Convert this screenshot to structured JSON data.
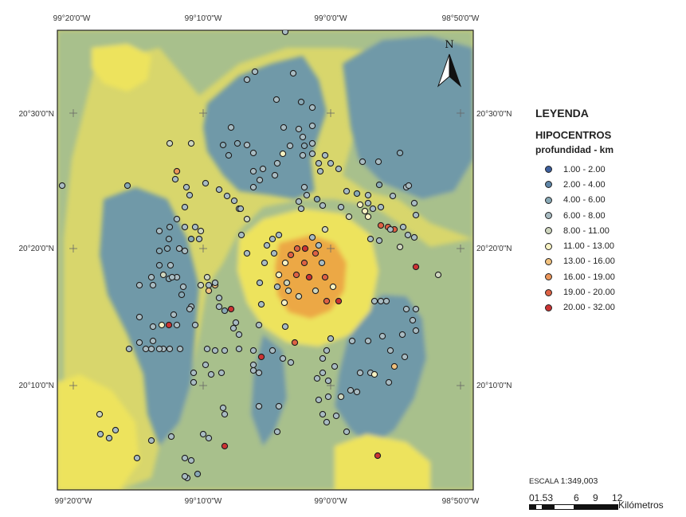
{
  "map": {
    "north_label": "N",
    "top_lon_labels": [
      "99°20'0\"W",
      "99°10'0\"W",
      "99°0'0\"W",
      "98°50'0\"W"
    ],
    "bottom_lon_labels": [
      "99°20'0\"W",
      "99°10'0\"W",
      "99°0'0\"W",
      "98°50'0\"W"
    ],
    "left_lat_labels": [
      "20°30'0\"N",
      "20°20'0\"N",
      "20°10'0\"N"
    ],
    "right_lat_labels": [
      "20°30'0\"N",
      "20°20'0\"N",
      "20°10'0\"N"
    ]
  },
  "legend": {
    "title": "LEYENDA",
    "subtitle": "HIPOCENTROS",
    "subtitle2": "profundidad - km",
    "classes": [
      {
        "label": "1.00 - 2.00",
        "color": "#3d5f9e"
      },
      {
        "label": "2.00 - 4.00",
        "color": "#5f86a8"
      },
      {
        "label": "4.00 - 6.00",
        "color": "#88a9b6"
      },
      {
        "label": "6.00 - 8.00",
        "color": "#a9bcc3"
      },
      {
        "label": "8.00 - 11.00",
        "color": "#cfd6bf"
      },
      {
        "label": "11.00 - 13.00",
        "color": "#f7f2c3"
      },
      {
        "label": "13.00 - 16.00",
        "color": "#f2c27e"
      },
      {
        "label": "16.00 - 19.00",
        "color": "#eb955a"
      },
      {
        "label": "19.00 - 20.00",
        "color": "#de6244"
      },
      {
        "label": "20.00 - 32.00",
        "color": "#cc3333"
      }
    ]
  },
  "scale": {
    "title_prefix": "ESCALA",
    "title_value": "1:349,003",
    "ticks": [
      "01.53",
      "6",
      "9",
      "12"
    ],
    "unit": "Kilómetros"
  },
  "colors": {
    "surface_shallow": "#6f99a8",
    "surface_mid": "#a8c08c",
    "surface_light": "#d8d66c",
    "surface_yellow": "#ede35d",
    "surface_deep": "#eca845"
  },
  "epicenters": [
    [
      358,
      40,
      3
    ],
    [
      320,
      90,
      3
    ],
    [
      310,
      100,
      3
    ],
    [
      368,
      92,
      3
    ],
    [
      347,
      125,
      3
    ],
    [
      378,
      128,
      2
    ],
    [
      392,
      135,
      3
    ],
    [
      356,
      160,
      3
    ],
    [
      375,
      162,
      3
    ],
    [
      392,
      158,
      3
    ],
    [
      380,
      172,
      3
    ],
    [
      392,
      180,
      3
    ],
    [
      364,
      183,
      3
    ],
    [
      382,
      183,
      2
    ],
    [
      392,
      193,
      3
    ],
    [
      408,
      195,
      3
    ],
    [
      415,
      205,
      3
    ],
    [
      425,
      212,
      3
    ],
    [
      400,
      205,
      3
    ],
    [
      402,
      215,
      3
    ],
    [
      380,
      195,
      3
    ],
    [
      355,
      193,
      5
    ],
    [
      348,
      205,
      3
    ],
    [
      345,
      220,
      3
    ],
    [
      330,
      212,
      3
    ],
    [
      318,
      215,
      3
    ],
    [
      326,
      226,
      3
    ],
    [
      318,
      235,
      3
    ],
    [
      382,
      235,
      3
    ],
    [
      385,
      245,
      3
    ],
    [
      375,
      253,
      3
    ],
    [
      378,
      262,
      3
    ],
    [
      398,
      250,
      2
    ],
    [
      405,
      258,
      3
    ],
    [
      435,
      240,
      3
    ],
    [
      448,
      243,
      2
    ],
    [
      462,
      245,
      3
    ],
    [
      468,
      262,
      3
    ],
    [
      452,
      257,
      5
    ],
    [
      458,
      265,
      5
    ],
    [
      462,
      272,
      5
    ],
    [
      462,
      255,
      3
    ],
    [
      478,
      260,
      3
    ],
    [
      493,
      246,
      3
    ],
    [
      510,
      235,
      3
    ],
    [
      520,
      255,
      3
    ],
    [
      522,
      270,
      3
    ],
    [
      478,
      283,
      8
    ],
    [
      487,
      285,
      8
    ],
    [
      495,
      288,
      8
    ],
    [
      506,
      285,
      3
    ],
    [
      512,
      295,
      3
    ],
    [
      520,
      298,
      3
    ],
    [
      522,
      335,
      9
    ],
    [
      550,
      345,
      4
    ],
    [
      502,
      310,
      4
    ],
    [
      490,
      288,
      3
    ],
    [
      465,
      300,
      3
    ],
    [
      476,
      302,
      3
    ],
    [
      438,
      272,
      4
    ],
    [
      428,
      260,
      3
    ],
    [
      408,
      288,
      4
    ],
    [
      392,
      298,
      3
    ],
    [
      400,
      308,
      3
    ],
    [
      383,
      312,
      9
    ],
    [
      373,
      312,
      8
    ],
    [
      365,
      320,
      8
    ],
    [
      358,
      330,
      5
    ],
    [
      350,
      345,
      5
    ],
    [
      360,
      355,
      4
    ],
    [
      372,
      345,
      8
    ],
    [
      388,
      348,
      9
    ],
    [
      382,
      330,
      8
    ],
    [
      396,
      318,
      8
    ],
    [
      404,
      330,
      3
    ],
    [
      408,
      348,
      8
    ],
    [
      418,
      360,
      5
    ],
    [
      425,
      378,
      9
    ],
    [
      410,
      378,
      8
    ],
    [
      396,
      365,
      4
    ],
    [
      375,
      372,
      4
    ],
    [
      357,
      380,
      5
    ],
    [
      362,
      365,
      4
    ],
    [
      348,
      360,
      3
    ],
    [
      342,
      300,
      3
    ],
    [
      350,
      295,
      3
    ],
    [
      335,
      308,
      3
    ],
    [
      344,
      318,
      3
    ],
    [
      332,
      330,
      3
    ],
    [
      326,
      355,
      3
    ],
    [
      310,
      318,
      3
    ],
    [
      303,
      295,
      3
    ],
    [
      310,
      275,
      4
    ],
    [
      300,
      262,
      3
    ],
    [
      294,
      252,
      3
    ],
    [
      285,
      246,
      3
    ],
    [
      275,
      238,
      3
    ],
    [
      258,
      230,
      3
    ],
    [
      252,
      290,
      4
    ],
    [
      245,
      285,
      3
    ],
    [
      240,
      300,
      2
    ],
    [
      232,
      285,
      3
    ],
    [
      225,
      312,
      3
    ],
    [
      213,
      285,
      2
    ],
    [
      212,
      300,
      2
    ],
    [
      210,
      312,
      2
    ],
    [
      200,
      315,
      2
    ],
    [
      200,
      333,
      2
    ],
    [
      214,
      333,
      3
    ],
    [
      212,
      350,
      2
    ],
    [
      222,
      348,
      3
    ],
    [
      228,
      370,
      2
    ],
    [
      240,
      385,
      3
    ],
    [
      245,
      408,
      3
    ],
    [
      222,
      408,
      3
    ],
    [
      212,
      408,
      9
    ],
    [
      203,
      408,
      5
    ],
    [
      218,
      395,
      3
    ],
    [
      226,
      438,
      3
    ],
    [
      205,
      438,
      3
    ],
    [
      213,
      438,
      3
    ],
    [
      200,
      438,
      3
    ],
    [
      190,
      438,
      3
    ],
    [
      183,
      438,
      3
    ],
    [
      192,
      428,
      3
    ],
    [
      192,
      410,
      3
    ],
    [
      175,
      398,
      3
    ],
    [
      175,
      358,
      3
    ],
    [
      175,
      430,
      3
    ],
    [
      162,
      438,
      3
    ],
    [
      192,
      358,
      3
    ],
    [
      205,
      345,
      4
    ],
    [
      216,
      348,
      3
    ],
    [
      190,
      348,
      3
    ],
    [
      262,
      358,
      3
    ],
    [
      262,
      365,
      6
    ],
    [
      270,
      358,
      6
    ],
    [
      275,
      374,
      3
    ],
    [
      282,
      390,
      2
    ],
    [
      290,
      388,
      9
    ],
    [
      296,
      405,
      3
    ],
    [
      293,
      412,
      3
    ],
    [
      300,
      420,
      3
    ],
    [
      300,
      438,
      3
    ],
    [
      282,
      440,
      3
    ],
    [
      270,
      440,
      3
    ],
    [
      260,
      438,
      3
    ],
    [
      258,
      458,
      3
    ],
    [
      265,
      470,
      3
    ],
    [
      278,
      468,
      3
    ],
    [
      243,
      468,
      3
    ],
    [
      243,
      480,
      3
    ],
    [
      238,
      388,
      3
    ],
    [
      252,
      358,
      4
    ],
    [
      260,
      348,
      4
    ],
    [
      270,
      355,
      3
    ],
    [
      275,
      385,
      3
    ],
    [
      328,
      382,
      3
    ],
    [
      325,
      408,
      3
    ],
    [
      318,
      440,
      3
    ],
    [
      328,
      448,
      9
    ],
    [
      342,
      440,
      3
    ],
    [
      355,
      450,
      3
    ],
    [
      365,
      455,
      3
    ],
    [
      370,
      430,
      8
    ],
    [
      358,
      410,
      3
    ],
    [
      318,
      465,
      3
    ],
    [
      325,
      468,
      3
    ],
    [
      318,
      458,
      3
    ],
    [
      325,
      510,
      3
    ],
    [
      350,
      510,
      3
    ],
    [
      348,
      542,
      3
    ],
    [
      280,
      512,
      3
    ],
    [
      282,
      520,
      3
    ],
    [
      282,
      560,
      9
    ],
    [
      255,
      545,
      3
    ],
    [
      262,
      550,
      3
    ],
    [
      240,
      578,
      3
    ],
    [
      235,
      600,
      3
    ],
    [
      232,
      575,
      3
    ],
    [
      215,
      548,
      3
    ],
    [
      190,
      553,
      3
    ],
    [
      172,
      575,
      3
    ],
    [
      145,
      540,
      3
    ],
    [
      137,
      550,
      3
    ],
    [
      126,
      545,
      3
    ],
    [
      125,
      520,
      4
    ],
    [
      232,
      598,
      3
    ],
    [
      248,
      595,
      2
    ],
    [
      415,
      425,
      3
    ],
    [
      410,
      440,
      3
    ],
    [
      405,
      450,
      3
    ],
    [
      420,
      460,
      3
    ],
    [
      405,
      468,
      3
    ],
    [
      398,
      475,
      3
    ],
    [
      412,
      478,
      3
    ],
    [
      412,
      498,
      3
    ],
    [
      400,
      502,
      3
    ],
    [
      405,
      520,
      3
    ],
    [
      410,
      530,
      3
    ],
    [
      422,
      522,
      3
    ],
    [
      435,
      542,
      3
    ],
    [
      428,
      498,
      4
    ],
    [
      440,
      490,
      3
    ],
    [
      448,
      492,
      3
    ],
    [
      452,
      468,
      3
    ],
    [
      465,
      468,
      3
    ],
    [
      470,
      470,
      5
    ],
    [
      488,
      480,
      3
    ],
    [
      495,
      460,
      6
    ],
    [
      508,
      448,
      3
    ],
    [
      480,
      422,
      3
    ],
    [
      490,
      440,
      3
    ],
    [
      505,
      420,
      3
    ],
    [
      522,
      415,
      3
    ],
    [
      518,
      402,
      3
    ],
    [
      522,
      388,
      3
    ],
    [
      510,
      388,
      3
    ],
    [
      478,
      378,
      3
    ],
    [
      485,
      378,
      3
    ],
    [
      470,
      378,
      3
    ],
    [
      462,
      428,
      3
    ],
    [
      442,
      428,
      3
    ],
    [
      474,
      572,
      9
    ],
    [
      302,
      262,
      3
    ],
    [
      280,
      182,
      2
    ],
    [
      298,
      180,
      2
    ],
    [
      287,
      195,
      2
    ],
    [
      310,
      182,
      3
    ],
    [
      290,
      160,
      3
    ],
    [
      318,
      192,
      3
    ],
    [
      240,
      180,
      4
    ],
    [
      234,
      235,
      3
    ],
    [
      238,
      245,
      3
    ],
    [
      232,
      260,
      3
    ],
    [
      222,
      215,
      7
    ],
    [
      220,
      225,
      3
    ],
    [
      213,
      180,
      4
    ],
    [
      160,
      233,
      2
    ],
    [
      476,
      232,
      2
    ],
    [
      502,
      192,
      2
    ],
    [
      475,
      203,
      3
    ],
    [
      455,
      203,
      3
    ],
    [
      513,
      233,
      3
    ],
    [
      78,
      233,
      3
    ],
    [
      222,
      275,
      3
    ],
    [
      232,
      315,
      3
    ],
    [
      250,
      300,
      3
    ],
    [
      230,
      360,
      3
    ],
    [
      200,
      290,
      3
    ]
  ]
}
